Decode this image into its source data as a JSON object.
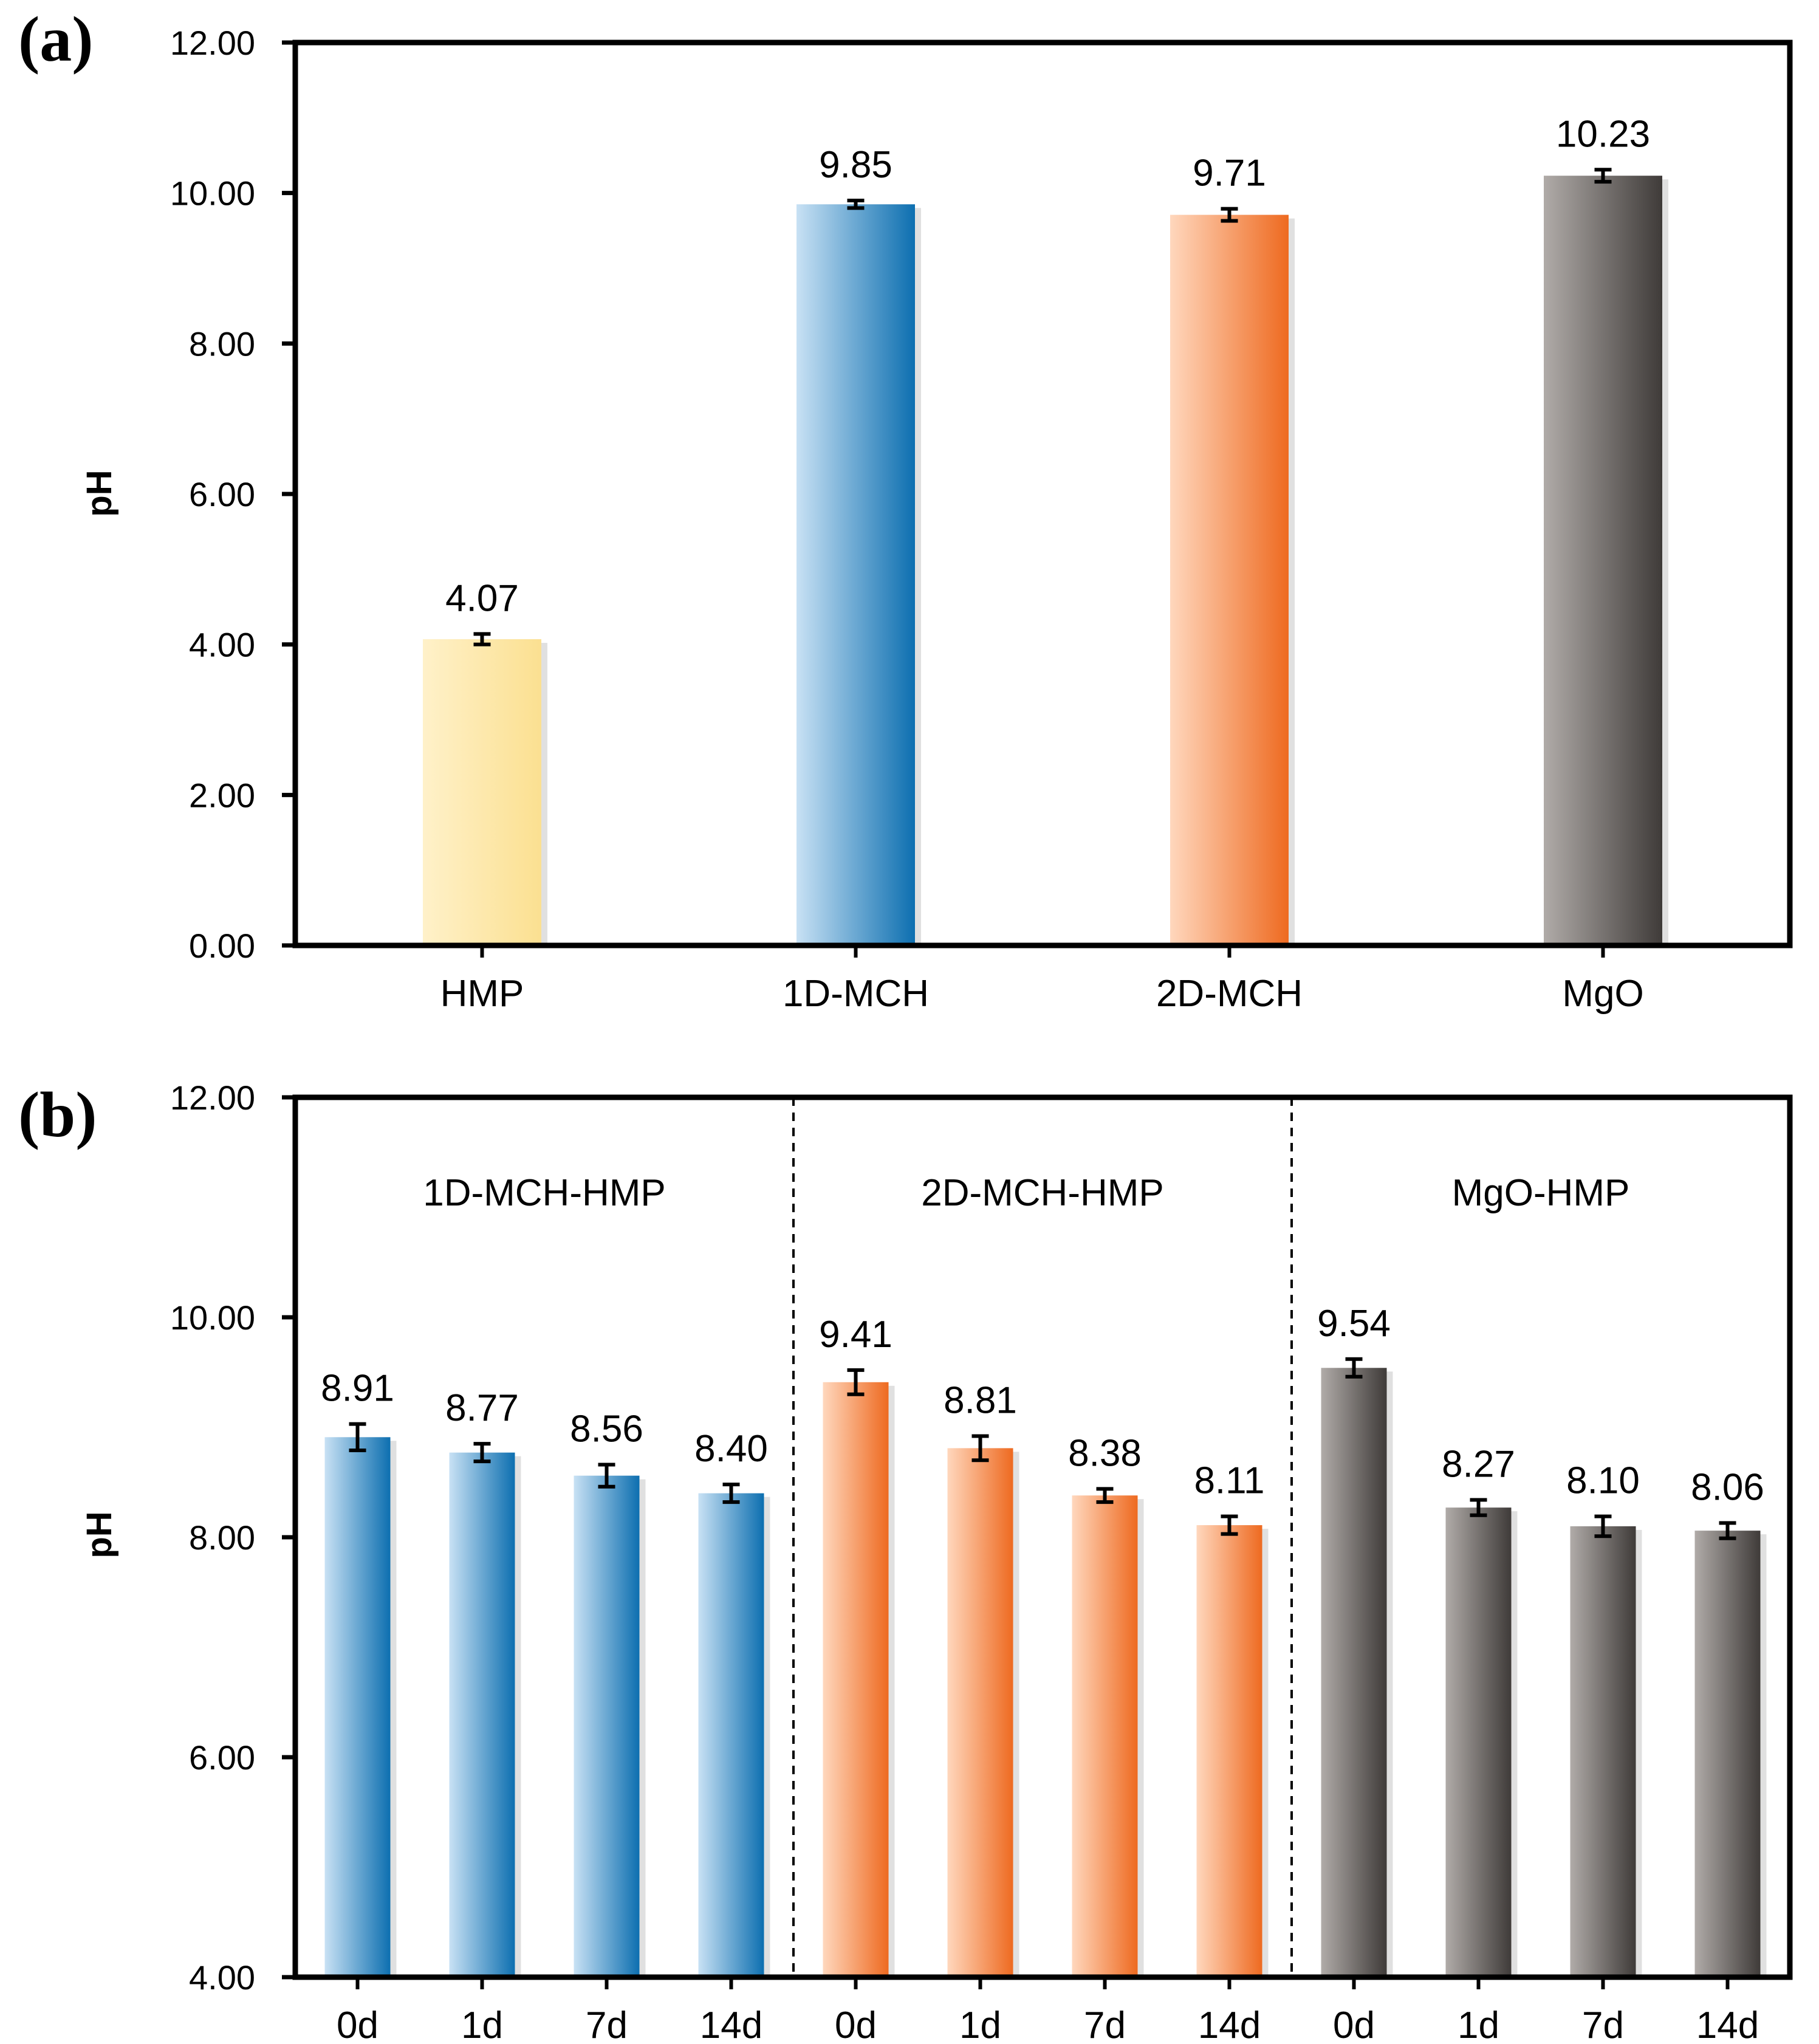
{
  "figure": {
    "panels": [
      "(a)",
      "(b)"
    ]
  },
  "colors": {
    "HMP": [
      "#fff1c9",
      "#fbe091"
    ],
    "1D": [
      "#c8e1f4",
      "#0d6fb0"
    ],
    "2D": [
      "#ffd7bd",
      "#ee6a20"
    ],
    "MgO": [
      "#b0aba8",
      "#3f3b39"
    ],
    "axis": "#000000"
  },
  "chart_data": [
    {
      "type": "bar",
      "panel": "(a)",
      "ylabel": "pH",
      "ylim": [
        0,
        12
      ],
      "yticks": [
        "0.00",
        "2.00",
        "4.00",
        "6.00",
        "8.00",
        "10.00",
        "12.00"
      ],
      "categories": [
        "HMP",
        "1D-MCH",
        "2D-MCH",
        "MgO"
      ],
      "values": [
        4.07,
        9.85,
        9.71,
        10.23
      ],
      "value_labels": [
        "4.07",
        "9.85",
        "9.71",
        "10.23"
      ],
      "errors": [
        0.07,
        0.05,
        0.08,
        0.08
      ],
      "color_keys": [
        "HMP",
        "1D",
        "2D",
        "MgO"
      ]
    },
    {
      "type": "bar",
      "panel": "(b)",
      "ylabel": "pH",
      "ylim": [
        4,
        12
      ],
      "yticks": [
        "4.00",
        "6.00",
        "8.00",
        "10.00",
        "12.00"
      ],
      "groups": [
        {
          "name": "1D-MCH-HMP",
          "color_key": "1D",
          "categories": [
            "0d",
            "1d",
            "7d",
            "14d"
          ],
          "values": [
            8.91,
            8.77,
            8.56,
            8.4
          ],
          "value_labels": [
            "8.91",
            "8.77",
            "8.56",
            "8.40"
          ],
          "errors": [
            0.12,
            0.08,
            0.1,
            0.08
          ]
        },
        {
          "name": "2D-MCH-HMP",
          "color_key": "2D",
          "categories": [
            "0d",
            "1d",
            "7d",
            "14d"
          ],
          "values": [
            9.41,
            8.81,
            8.38,
            8.11
          ],
          "value_labels": [
            "9.41",
            "8.81",
            "8.38",
            "8.11"
          ],
          "errors": [
            0.11,
            0.11,
            0.06,
            0.08
          ]
        },
        {
          "name": "MgO-HMP",
          "color_key": "MgO",
          "categories": [
            "0d",
            "1d",
            "7d",
            "14d"
          ],
          "values": [
            9.54,
            8.27,
            8.1,
            8.06
          ],
          "value_labels": [
            "9.54",
            "8.27",
            "8.10",
            "8.06"
          ],
          "errors": [
            0.08,
            0.07,
            0.09,
            0.07
          ]
        }
      ]
    }
  ]
}
